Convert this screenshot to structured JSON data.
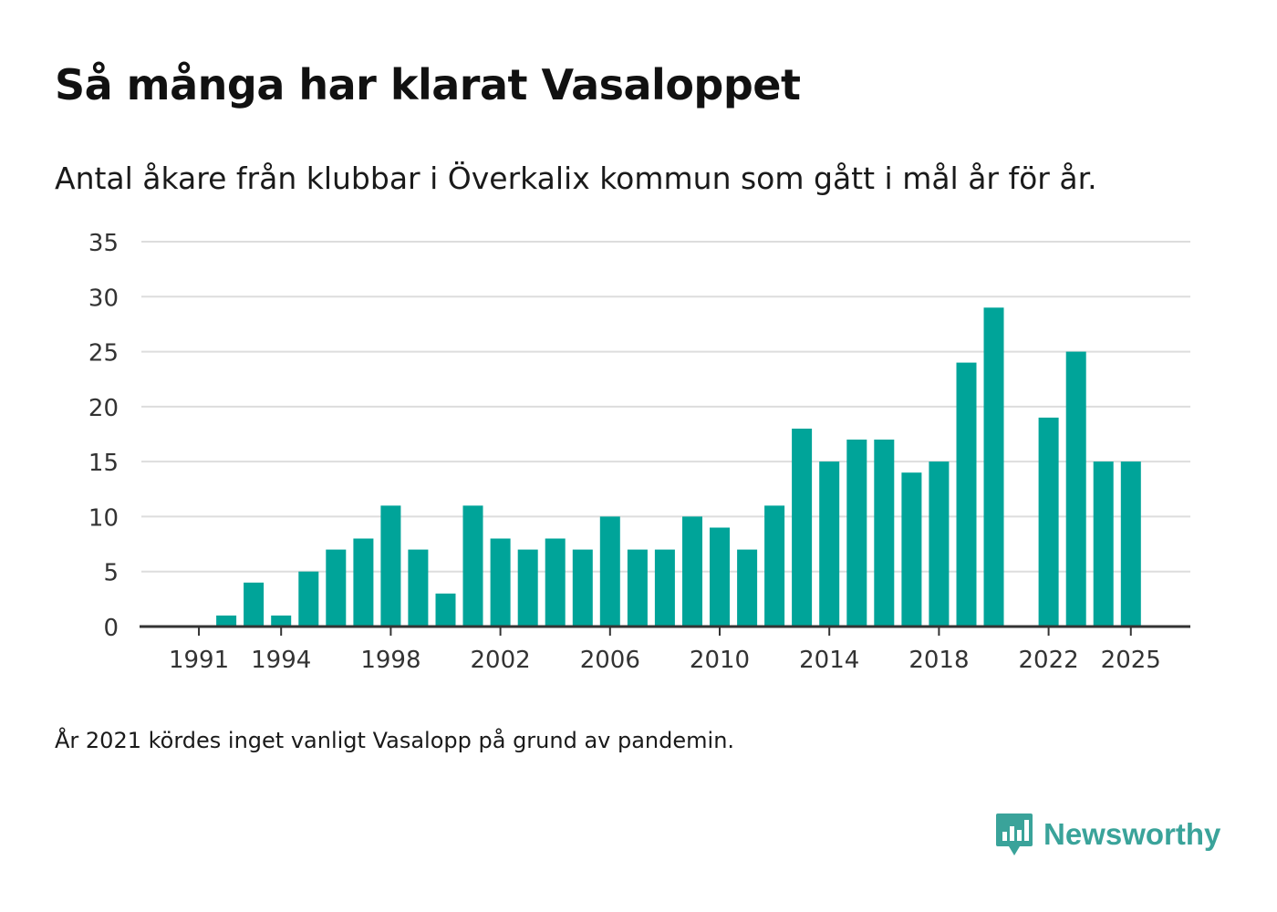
{
  "title": "Så många har klarat Vasaloppet",
  "subtitle": "Antal åkare från klubbar i Överkalix kommun som gått i mål år för år.",
  "footnote": "År 2021 kördes inget vanligt Vasalopp på grund av pandemin.",
  "brand": {
    "name": "Newsworthy",
    "icon": "newsworthy-logo-icon",
    "color": "#3aa39a"
  },
  "colors": {
    "bar": "#00a499",
    "grid": "#dddddd",
    "axis": "#333333"
  },
  "chart_data": {
    "type": "bar",
    "title": "Så många har klarat Vasaloppet",
    "subtitle": "Antal åkare från klubbar i Överkalix kommun som gått i mål år för år.",
    "xlabel": "",
    "ylabel": "",
    "categories": [
      1990,
      1991,
      1992,
      1993,
      1994,
      1995,
      1996,
      1997,
      1998,
      1999,
      2000,
      2001,
      2002,
      2003,
      2004,
      2005,
      2006,
      2007,
      2008,
      2009,
      2010,
      2011,
      2012,
      2013,
      2014,
      2015,
      2016,
      2017,
      2018,
      2019,
      2020,
      2021,
      2022,
      2023,
      2024,
      2025
    ],
    "values": [
      0,
      0,
      1,
      4,
      1,
      5,
      7,
      8,
      11,
      7,
      3,
      11,
      8,
      7,
      8,
      7,
      10,
      7,
      7,
      10,
      9,
      7,
      11,
      18,
      15,
      17,
      17,
      14,
      15,
      24,
      29,
      null,
      19,
      25,
      15,
      15
    ],
    "ylim": [
      0,
      35
    ],
    "yticks": [
      "0",
      "5",
      "10",
      "15",
      "20",
      "25",
      "30",
      "35"
    ],
    "xticks": [
      "1991",
      "1994",
      "1998",
      "2002",
      "2006",
      "2010",
      "2014",
      "2018",
      "2022",
      "2025"
    ],
    "grid": true,
    "legend": "none"
  }
}
